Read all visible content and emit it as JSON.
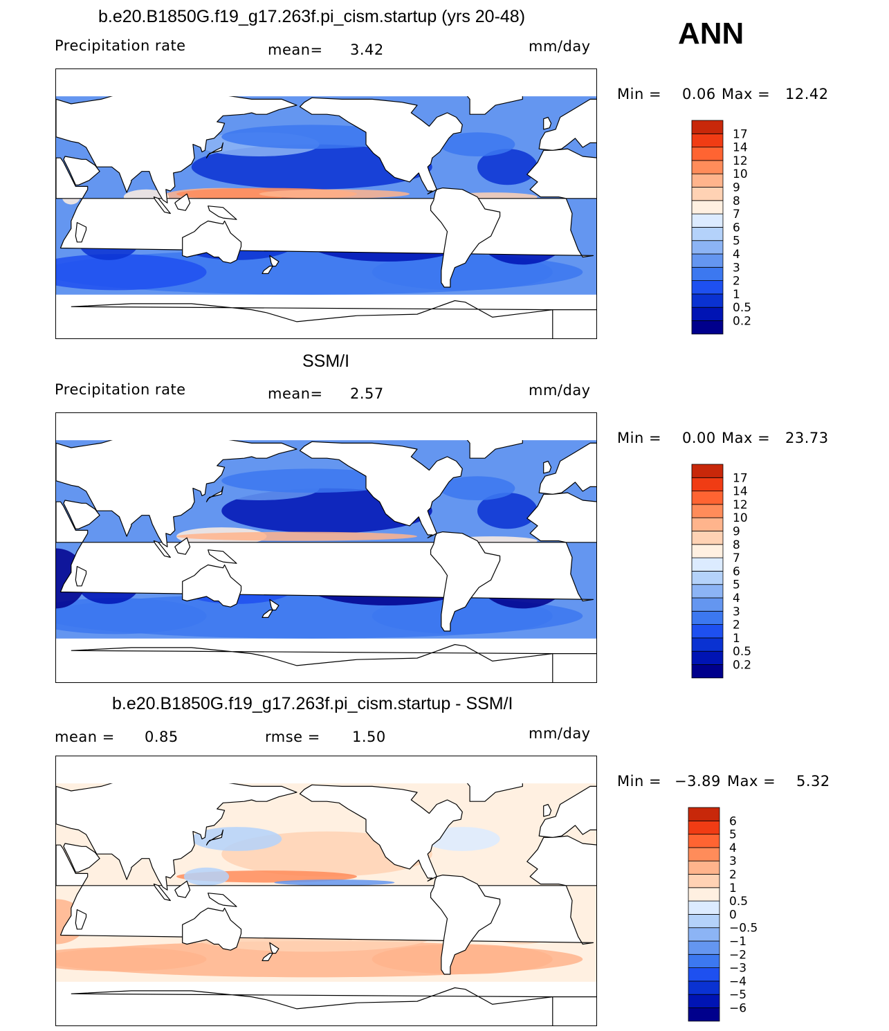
{
  "season": "ANN",
  "colors": {
    "seq": [
      "#00008c",
      "#0014b4",
      "#0a32d2",
      "#1e50f0",
      "#3c78f0",
      "#6496f0",
      "#8cb4f5",
      "#b4d2fa",
      "#dcebff",
      "#fff0e1",
      "#ffd2b4",
      "#ffb48c",
      "#ff8c5a",
      "#ff6432",
      "#f03c14",
      "#c8280a",
      "#a01405",
      "#780000"
    ],
    "diff": [
      "#00008c",
      "#0014b4",
      "#0a32d2",
      "#1e50f0",
      "#3c78f0",
      "#6496f0",
      "#8cb4f5",
      "#b4d2fa",
      "#dcebff",
      "#fff0e1",
      "#ffd2b4",
      "#ffb48c",
      "#ff8c5a",
      "#ff6432",
      "#f03c14",
      "#c8280a",
      "#a01405",
      "#780000"
    ],
    "land": "#ffffff",
    "coast": "#000000"
  },
  "panels": [
    {
      "title": "b.e20.B1850G.f19_g17.263f.pi_cism.startup (yrs 20-48)",
      "left_label": "Precipitation rate",
      "mean_label": "mean=",
      "mean_value": "3.42",
      "units": "mm/day",
      "min_label": "Min =",
      "min_value": "0.06",
      "max_label": "Max =",
      "max_value": "12.42",
      "colorbar_levels": [
        "0.2",
        "0.5",
        "1",
        "2",
        "3",
        "4",
        "5",
        "6",
        "7",
        "8",
        "9",
        "10",
        "12",
        "14",
        "17"
      ],
      "field": "model"
    },
    {
      "title": "SSM/I",
      "left_label": "Precipitation rate",
      "mean_label": "mean=",
      "mean_value": "2.57",
      "units": "mm/day",
      "min_label": "Min =",
      "min_value": "0.00",
      "max_label": "Max =",
      "max_value": "23.73",
      "colorbar_levels": [
        "0.2",
        "0.5",
        "1",
        "2",
        "3",
        "4",
        "5",
        "6",
        "7",
        "8",
        "9",
        "10",
        "12",
        "14",
        "17"
      ],
      "field": "obs"
    },
    {
      "title": "b.e20.B1850G.f19_g17.263f.pi_cism.startup - SSM/I",
      "left_label": "mean =",
      "left_value": "0.85",
      "rmse_label": "rmse =",
      "rmse_value": "1.50",
      "units": "mm/day",
      "min_label": "Min =",
      "min_value": "−3.89",
      "max_label": "Max =",
      "max_value": "5.32",
      "colorbar_levels": [
        "−6",
        "−5",
        "−4",
        "−3",
        "−2",
        "−1",
        "−0.5",
        "0",
        "0.5",
        "1",
        "2",
        "3",
        "4",
        "5",
        "6"
      ],
      "field": "diff"
    }
  ]
}
